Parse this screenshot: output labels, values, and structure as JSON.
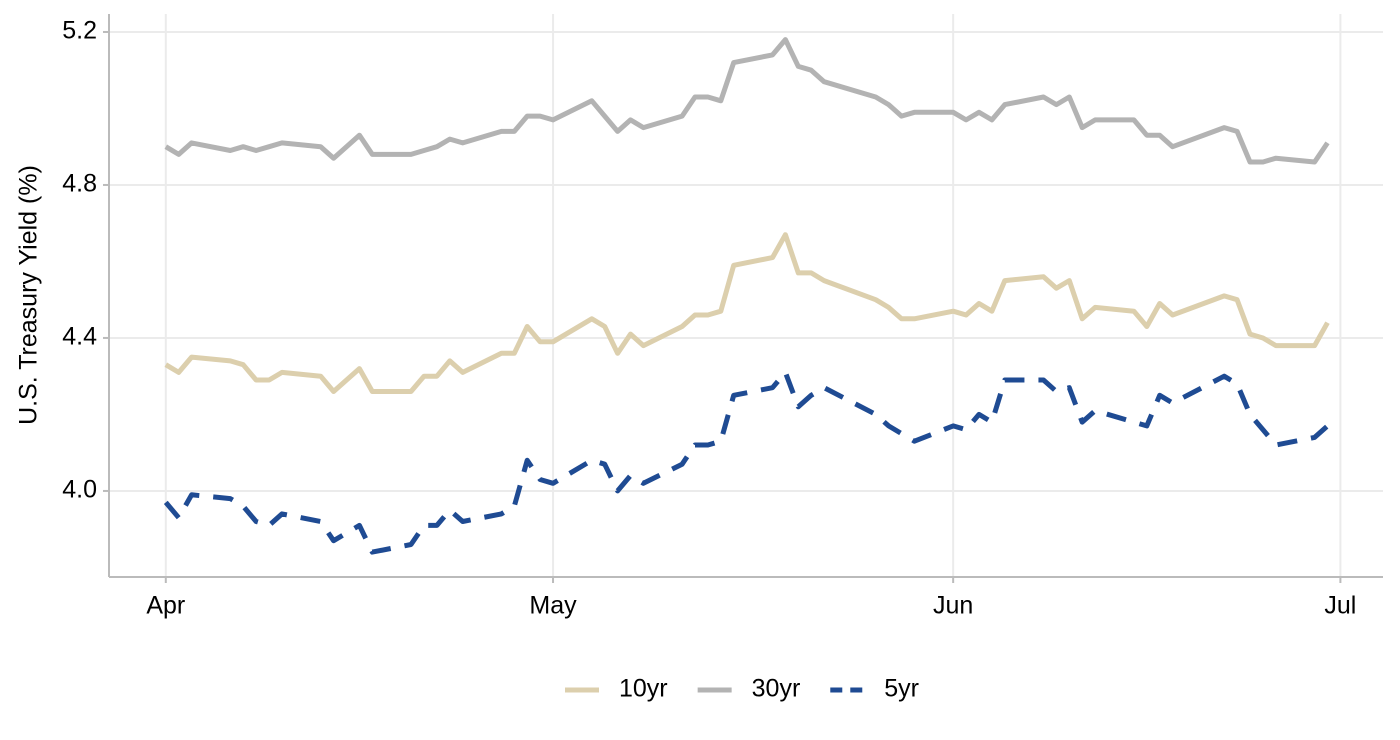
{
  "chart_data": {
    "type": "line",
    "y_label": "U.S. Treasury Yield (%)",
    "x": [
      0,
      1,
      2,
      5,
      6,
      7,
      8,
      9,
      12,
      13,
      15,
      16,
      19,
      20,
      21,
      22,
      23,
      26,
      27,
      28,
      29,
      30,
      33,
      34,
      35,
      36,
      37,
      40,
      41,
      42,
      43,
      44,
      47,
      48,
      49,
      50,
      51,
      55,
      56,
      57,
      58,
      61,
      62,
      63,
      64,
      65,
      68,
      69,
      70,
      71,
      72,
      75,
      76,
      77,
      78,
      82,
      83,
      84,
      85,
      86,
      89,
      90
    ],
    "xlim": [
      -4.4,
      94.3
    ],
    "xticks": [
      {
        "value": 0,
        "label": "Apr"
      },
      {
        "value": 30,
        "label": "May"
      },
      {
        "value": 61,
        "label": "Jun"
      },
      {
        "value": 91,
        "label": "Jul"
      }
    ],
    "ylim": [
      3.775,
      5.247
    ],
    "yticks": [
      {
        "value": 4,
        "label": "4.0"
      },
      4.4,
      4.8,
      5.2
    ],
    "grid": true,
    "legend": "bottom",
    "series": [
      {
        "name": "10yr",
        "color": "#dccfad",
        "line_style": "solid",
        "values": [
          4.33,
          4.31,
          4.35,
          4.34,
          4.33,
          4.29,
          4.29,
          4.31,
          4.3,
          4.26,
          4.32,
          4.26,
          4.26,
          4.3,
          4.3,
          4.34,
          4.31,
          4.36,
          4.36,
          4.43,
          4.39,
          4.39,
          4.45,
          4.43,
          4.36,
          4.41,
          4.38,
          4.43,
          4.46,
          4.46,
          4.47,
          4.59,
          4.61,
          4.67,
          4.57,
          4.57,
          4.55,
          4.5,
          4.48,
          4.45,
          4.45,
          4.47,
          4.46,
          4.49,
          4.47,
          4.55,
          4.56,
          4.53,
          4.55,
          4.45,
          4.48,
          4.47,
          4.43,
          4.49,
          4.46,
          4.51,
          4.5,
          4.41,
          4.4,
          4.38,
          4.38,
          4.44
        ]
      },
      {
        "name": "30yr",
        "color": "#b3b3b3",
        "line_style": "solid",
        "values": [
          4.9,
          4.88,
          4.91,
          4.89,
          4.9,
          4.89,
          4.9,
          4.91,
          4.9,
          4.87,
          4.93,
          4.88,
          4.88,
          4.89,
          4.9,
          4.92,
          4.91,
          4.94,
          4.94,
          4.98,
          4.98,
          4.97,
          5.02,
          4.98,
          4.94,
          4.97,
          4.95,
          4.98,
          5.03,
          5.03,
          5.02,
          5.12,
          5.14,
          5.18,
          5.11,
          5.1,
          5.07,
          5.03,
          5.01,
          4.98,
          4.99,
          4.99,
          4.97,
          4.99,
          4.97,
          5.01,
          5.03,
          5.01,
          5.03,
          4.95,
          4.97,
          4.97,
          4.93,
          4.93,
          4.9,
          4.95,
          4.94,
          4.86,
          4.86,
          4.87,
          4.86,
          4.91
        ]
      },
      {
        "name": "5yr",
        "color": "#1f4b93",
        "line_style": "dashed",
        "values": [
          3.97,
          3.93,
          3.99,
          3.98,
          3.96,
          3.92,
          3.91,
          3.94,
          3.92,
          3.87,
          3.91,
          3.84,
          3.86,
          3.91,
          3.91,
          3.95,
          3.92,
          3.94,
          3.96,
          4.08,
          4.03,
          4.02,
          4.08,
          4.07,
          4.0,
          4.04,
          4.02,
          4.07,
          4.12,
          4.12,
          4.13,
          4.25,
          4.27,
          4.31,
          4.22,
          4.25,
          4.27,
          4.2,
          4.17,
          4.15,
          4.13,
          4.17,
          4.16,
          4.2,
          4.18,
          4.29,
          4.29,
          4.26,
          4.27,
          4.18,
          4.21,
          4.18,
          4.17,
          4.25,
          4.23,
          4.3,
          4.28,
          4.2,
          4.16,
          4.12,
          4.14,
          4.17
        ]
      }
    ]
  }
}
